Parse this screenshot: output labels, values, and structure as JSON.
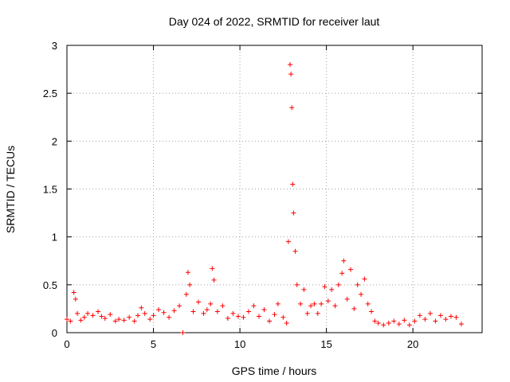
{
  "chart_data": {
    "type": "scatter",
    "title": "Day 024 of 2022, SRMTID for receiver laut",
    "xlabel": "GPS time / hours",
    "ylabel": "SRMTID / TECUs",
    "xlim": [
      0,
      24
    ],
    "ylim": [
      0,
      3
    ],
    "xticks": [
      0,
      5,
      10,
      15,
      20
    ],
    "xtick_labels": [
      "0",
      "5",
      "10",
      "15",
      "20"
    ],
    "yticks": [
      0,
      0.5,
      1,
      1.5,
      2,
      2.5,
      3
    ],
    "ytick_labels": [
      "0",
      "0.5",
      "1",
      "1.5",
      "2",
      "2.5",
      "3"
    ],
    "grid": true,
    "marker": "+",
    "color": "#ff0000",
    "series": [
      {
        "name": "SRMTID",
        "x": [
          0.0,
          0.2,
          0.4,
          0.5,
          0.6,
          0.8,
          1.0,
          1.2,
          1.5,
          1.8,
          2.0,
          2.2,
          2.5,
          2.8,
          3.0,
          3.3,
          3.6,
          3.9,
          4.1,
          4.3,
          4.5,
          4.8,
          5.0,
          5.3,
          5.6,
          5.9,
          6.2,
          6.5,
          6.7,
          6.9,
          7.0,
          7.1,
          7.3,
          7.6,
          7.9,
          8.1,
          8.3,
          8.4,
          8.5,
          8.7,
          9.0,
          9.3,
          9.6,
          9.9,
          10.2,
          10.5,
          10.8,
          11.1,
          11.4,
          11.7,
          12.0,
          12.2,
          12.5,
          12.7,
          12.8,
          12.9,
          12.95,
          13.0,
          13.05,
          13.1,
          13.2,
          13.3,
          13.5,
          13.7,
          13.9,
          14.1,
          14.3,
          14.5,
          14.7,
          14.9,
          15.1,
          15.3,
          15.5,
          15.7,
          15.9,
          16.0,
          16.2,
          16.4,
          16.6,
          16.8,
          17.0,
          17.2,
          17.4,
          17.6,
          17.8,
          18.0,
          18.3,
          18.6,
          18.9,
          19.2,
          19.5,
          19.8,
          20.1,
          20.4,
          20.7,
          21.0,
          21.3,
          21.6,
          21.9,
          22.2,
          22.5,
          22.8
        ],
        "y": [
          0.14,
          0.12,
          0.42,
          0.35,
          0.2,
          0.13,
          0.16,
          0.2,
          0.18,
          0.22,
          0.17,
          0.15,
          0.19,
          0.12,
          0.14,
          0.13,
          0.16,
          0.12,
          0.18,
          0.26,
          0.2,
          0.14,
          0.18,
          0.24,
          0.21,
          0.16,
          0.23,
          0.28,
          0.0,
          0.4,
          0.63,
          0.5,
          0.22,
          0.32,
          0.2,
          0.24,
          0.3,
          0.67,
          0.55,
          0.22,
          0.28,
          0.15,
          0.2,
          0.17,
          0.16,
          0.22,
          0.28,
          0.17,
          0.24,
          0.12,
          0.19,
          0.3,
          0.16,
          0.1,
          0.95,
          2.8,
          2.7,
          2.35,
          1.55,
          1.25,
          0.85,
          0.5,
          0.3,
          0.45,
          0.2,
          0.28,
          0.3,
          0.2,
          0.3,
          0.48,
          0.33,
          0.45,
          0.28,
          0.5,
          0.62,
          0.75,
          0.35,
          0.66,
          0.25,
          0.5,
          0.4,
          0.56,
          0.3,
          0.22,
          0.12,
          0.1,
          0.08,
          0.1,
          0.12,
          0.09,
          0.13,
          0.08,
          0.12,
          0.18,
          0.14,
          0.2,
          0.12,
          0.18,
          0.14,
          0.17,
          0.16,
          0.09
        ]
      }
    ]
  }
}
